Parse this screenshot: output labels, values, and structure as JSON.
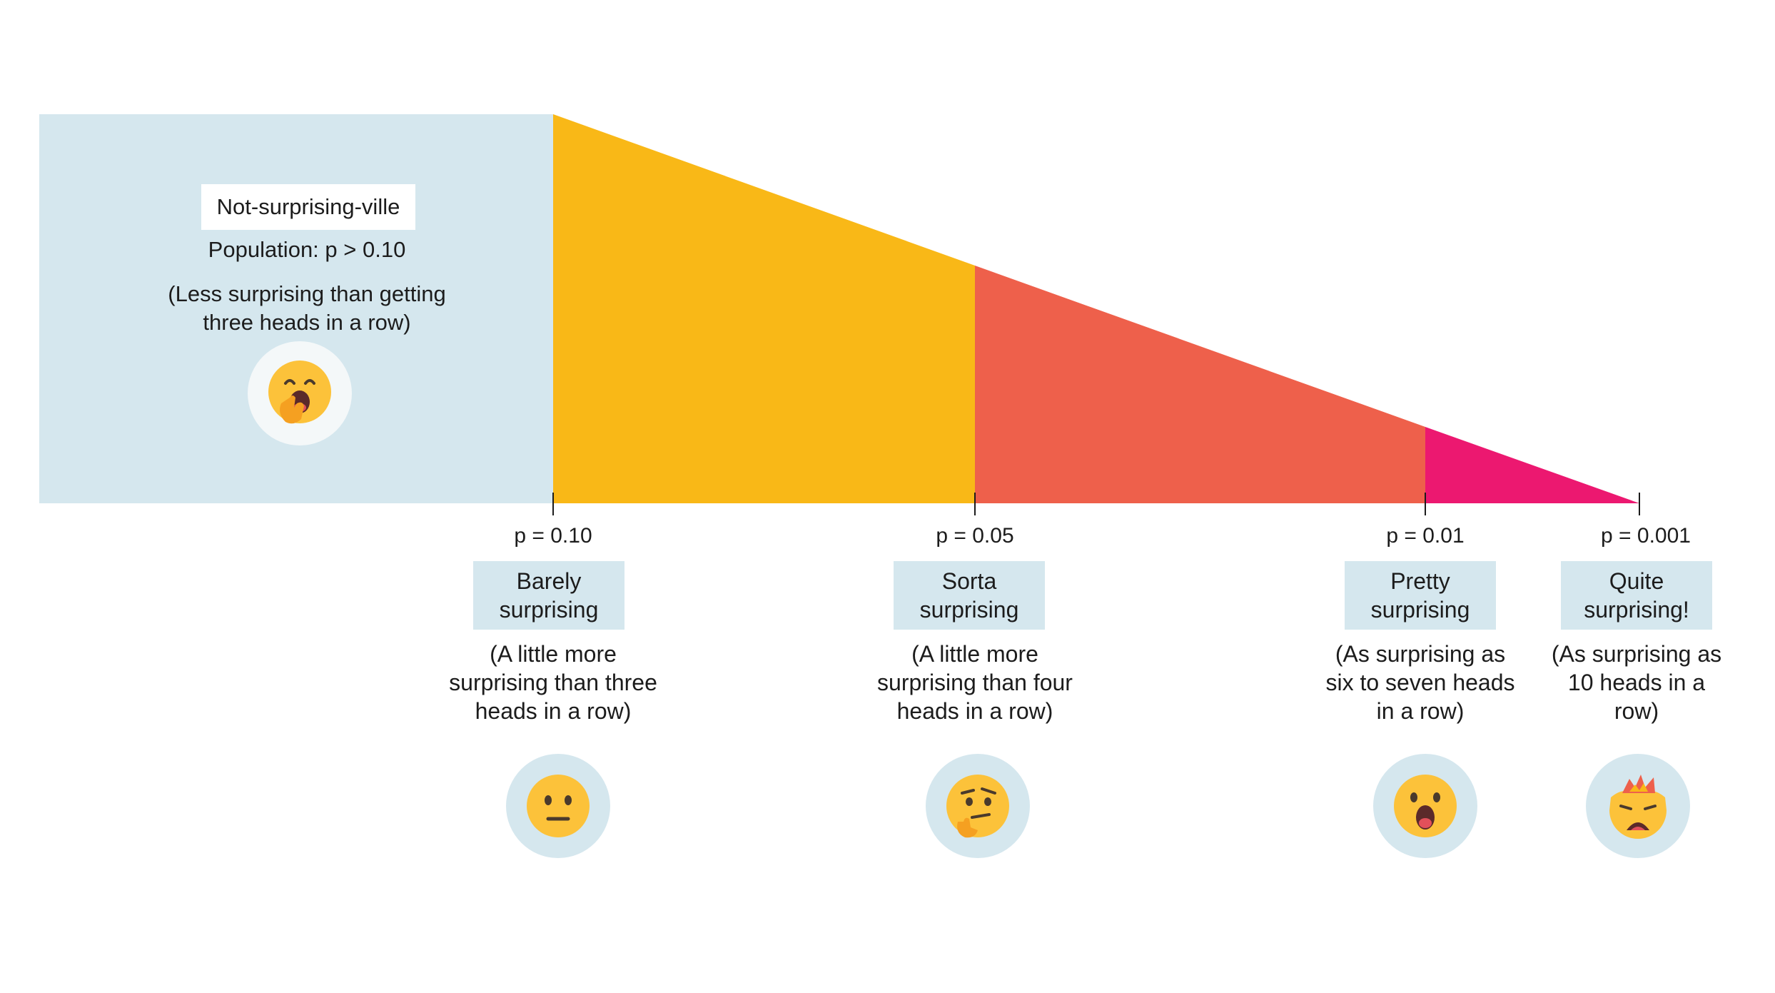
{
  "colors": {
    "home_bg": "#d5e7ee",
    "band_1": "#f9b817",
    "band_2": "#ee604b",
    "band_3": "#ec1870",
    "badge_bg": "#d5e7ee",
    "emoji_face": "#fcc23a",
    "emoji_hand": "#f5a021"
  },
  "home": {
    "label": "Not-surprising-ville",
    "population": "Population: p > 0.10",
    "description": "(Less surprising than getting three heads in a row)",
    "icon": "yawning-face-icon"
  },
  "thresholds": [
    {
      "p_label": "p = 0.10",
      "category": "Barely surprising",
      "description": "(A little more surprising than three heads in a row)",
      "icon": "neutral-face-icon"
    },
    {
      "p_label": "p = 0.05",
      "category": "Sorta surprising",
      "description": "(A little more surprising than four heads in a row)",
      "icon": "thinking-face-icon"
    },
    {
      "p_label": "p = 0.01",
      "category": "Pretty surprising",
      "description": "(As surprising as six to seven heads in a row)",
      "icon": "astonished-face-icon"
    },
    {
      "p_label": "p = 0.001",
      "category": "Quite surprising!",
      "description": "(As surprising as 10 heads in a row)",
      "icon": "exploding-head-icon"
    }
  ]
}
